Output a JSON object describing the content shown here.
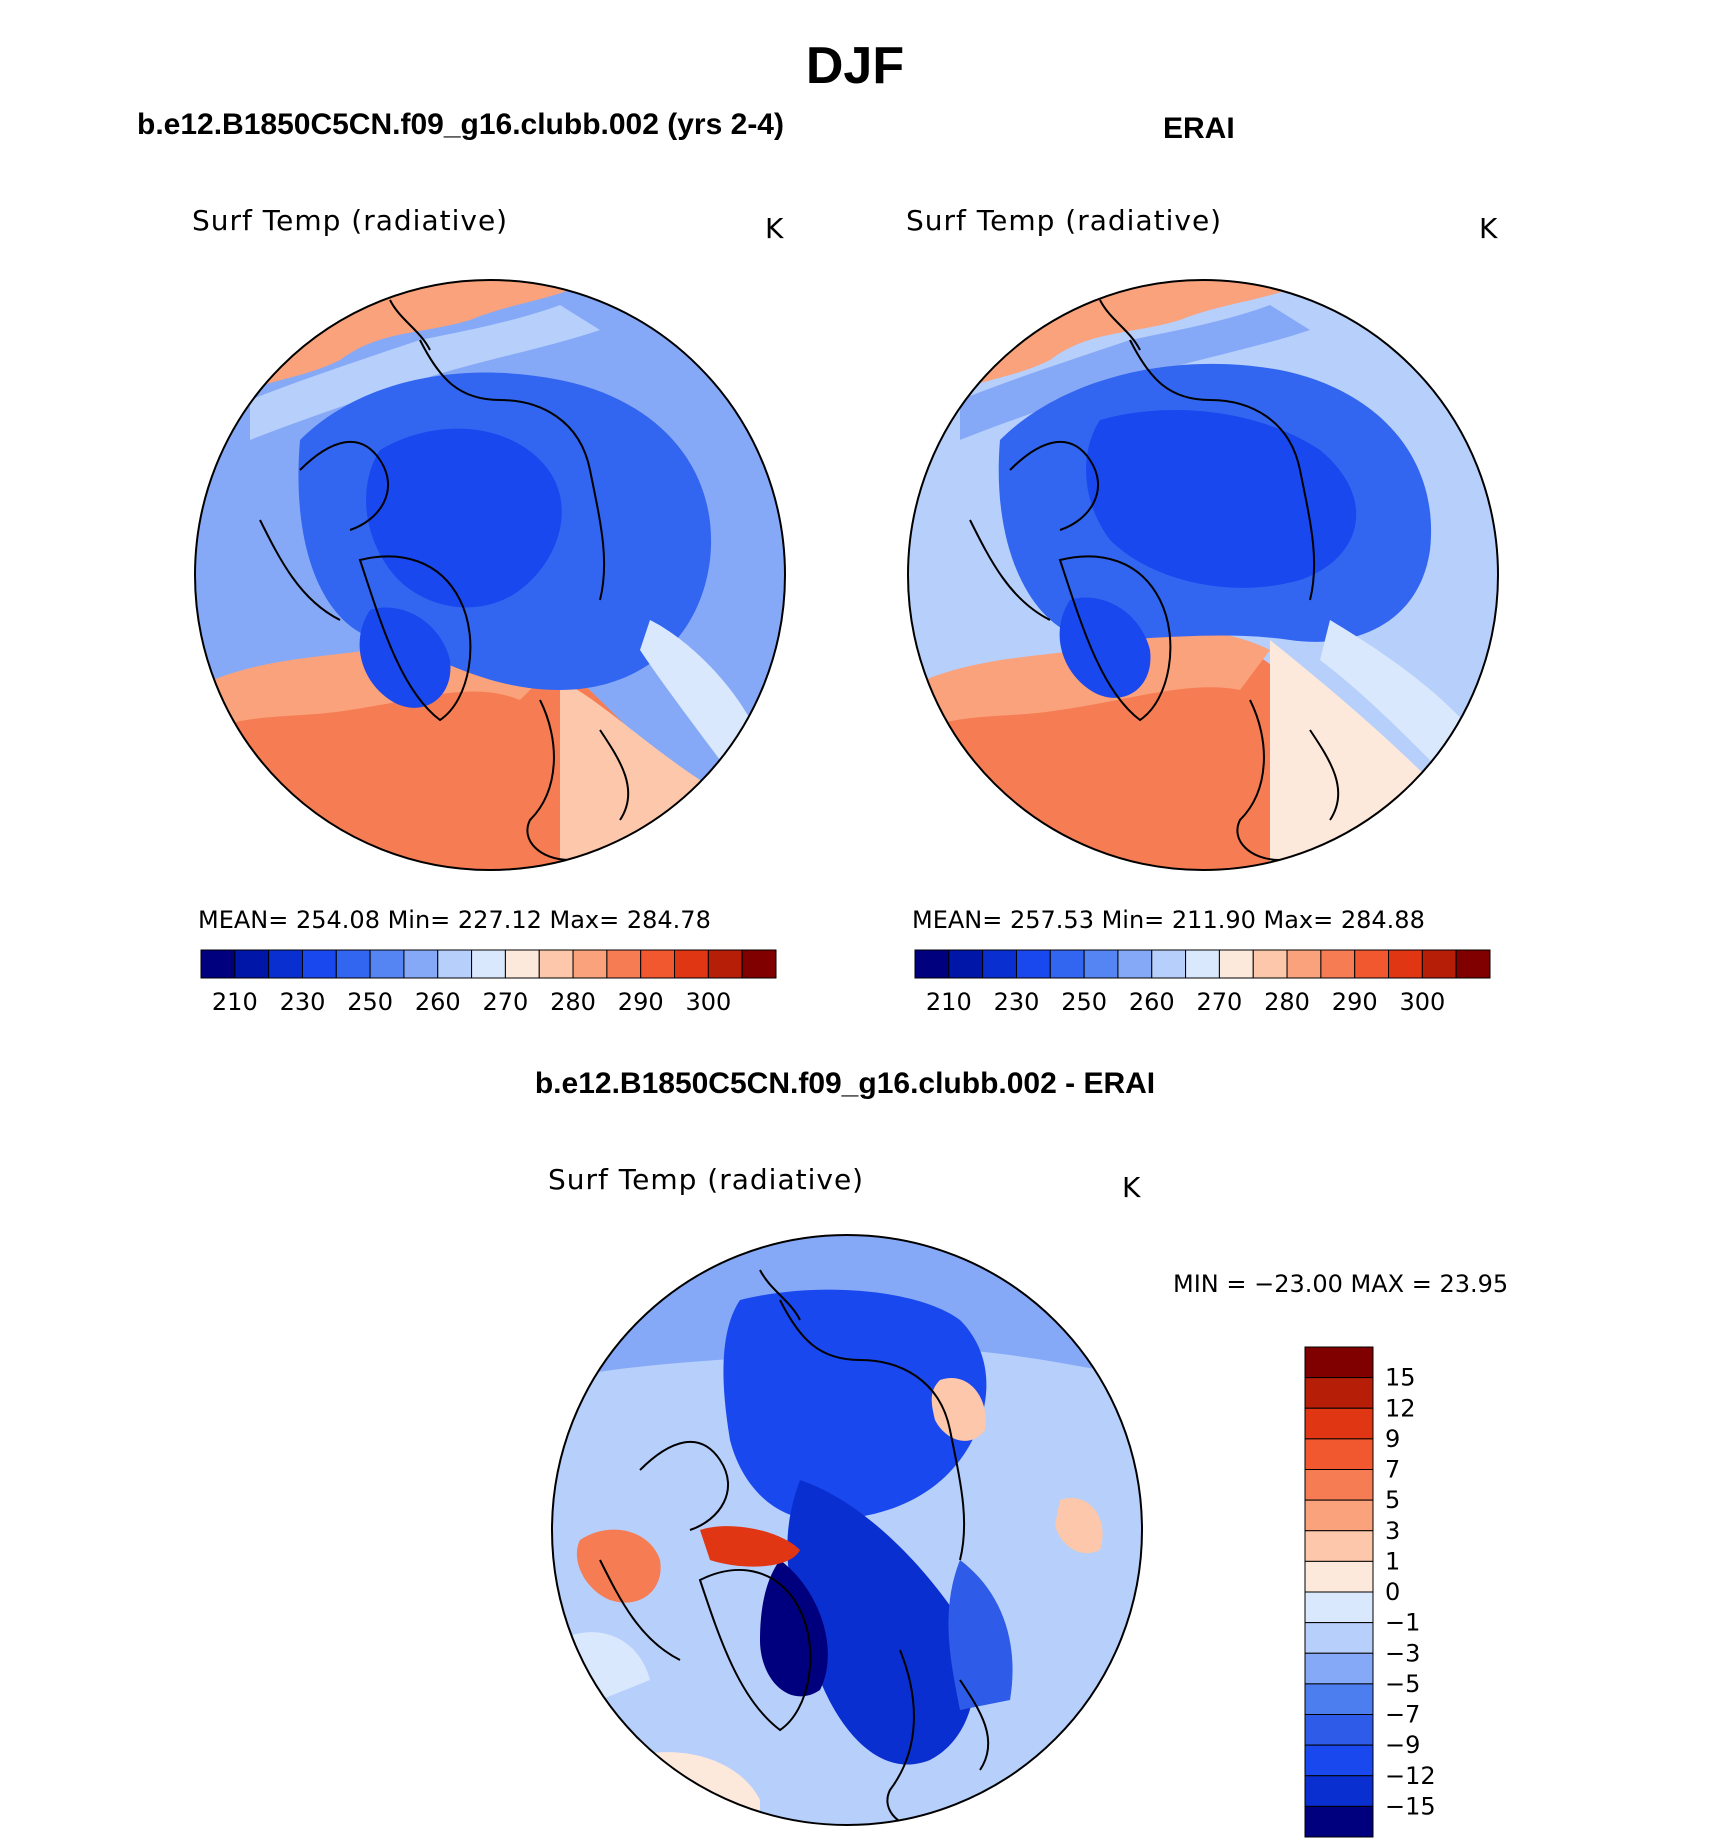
{
  "figure": {
    "title": "DJF"
  },
  "panels": [
    {
      "title": "b.e12.B1850C5CN.f09_g16.clubb.002 (yrs 2-4)",
      "variable": "Surf Temp (radiative)",
      "units": "K",
      "stats": "MEAN= 254.08   Min= 227.12   Max= 284.78"
    },
    {
      "title": "ERAI",
      "variable": "Surf Temp (radiative)",
      "units": "K",
      "stats": "MEAN= 257.53   Min= 211.90   Max= 284.88"
    },
    {
      "title": "b.e12.B1850C5CN.f09_g16.clubb.002 - ERAI",
      "variable": "Surf Temp (radiative)",
      "units": "K",
      "stats": "MIN  =  −23.00  MAX  =    23.95"
    }
  ],
  "colors": {
    "abs_scale": [
      "#00007f",
      "#0016a8",
      "#0a2fd0",
      "#1a48ef",
      "#3366f0",
      "#5585f2",
      "#86a9f7",
      "#b7cffb",
      "#d9e8fd",
      "#fde8dc",
      "#fcc7aa",
      "#f9a27c",
      "#f57c53",
      "#f2582f",
      "#e03614",
      "#b61e08",
      "#800000"
    ],
    "diff_scale": [
      "#00007f",
      "#0a2fd0",
      "#1a48ef",
      "#2e5be8",
      "#4d7ef0",
      "#86a9f7",
      "#b7cffb",
      "#d9e8fd",
      "#fde8dc",
      "#fcc7aa",
      "#f9a27c",
      "#f57c53",
      "#f2582f",
      "#e03614",
      "#b61e08",
      "#800000"
    ]
  },
  "chart_data": [
    {
      "type": "heatmap",
      "projection": "north polar stereographic",
      "title": "b.e12.B1850C5CN.f09_g16.clubb.002 (yrs 2-4)",
      "variable": "Surf Temp (radiative)",
      "units": "K",
      "mean": 254.08,
      "min": 227.12,
      "max": 284.78,
      "colorbar_levels": [
        210,
        220,
        230,
        240,
        250,
        255,
        260,
        265,
        270,
        275,
        280,
        285,
        290,
        295,
        300,
        305
      ],
      "colorbar_tick_labels": [
        "210",
        "230",
        "250",
        "260",
        "270",
        "280",
        "290",
        "300"
      ]
    },
    {
      "type": "heatmap",
      "projection": "north polar stereographic",
      "title": "ERAI",
      "variable": "Surf Temp (radiative)",
      "units": "K",
      "mean": 257.53,
      "min": 211.9,
      "max": 284.88,
      "colorbar_levels": [
        210,
        220,
        230,
        240,
        250,
        255,
        260,
        265,
        270,
        275,
        280,
        285,
        290,
        295,
        300,
        305
      ],
      "colorbar_tick_labels": [
        "210",
        "230",
        "250",
        "260",
        "270",
        "280",
        "290",
        "300"
      ]
    },
    {
      "type": "heatmap",
      "projection": "north polar stereographic",
      "title": "b.e12.B1850C5CN.f09_g16.clubb.002 - ERAI",
      "variable": "Surf Temp (radiative)",
      "units": "K",
      "min": -23.0,
      "max": 23.95,
      "colorbar_levels": [
        -15,
        -12,
        -9,
        -7,
        -5,
        -3,
        -1,
        0,
        1,
        3,
        5,
        7,
        9,
        12,
        15
      ],
      "colorbar_tick_labels": [
        "15",
        "12",
        "9",
        "7",
        "5",
        "3",
        "1",
        "0",
        "−1",
        "−3",
        "−5",
        "−7",
        "−9",
        "−12",
        "−15"
      ]
    }
  ]
}
